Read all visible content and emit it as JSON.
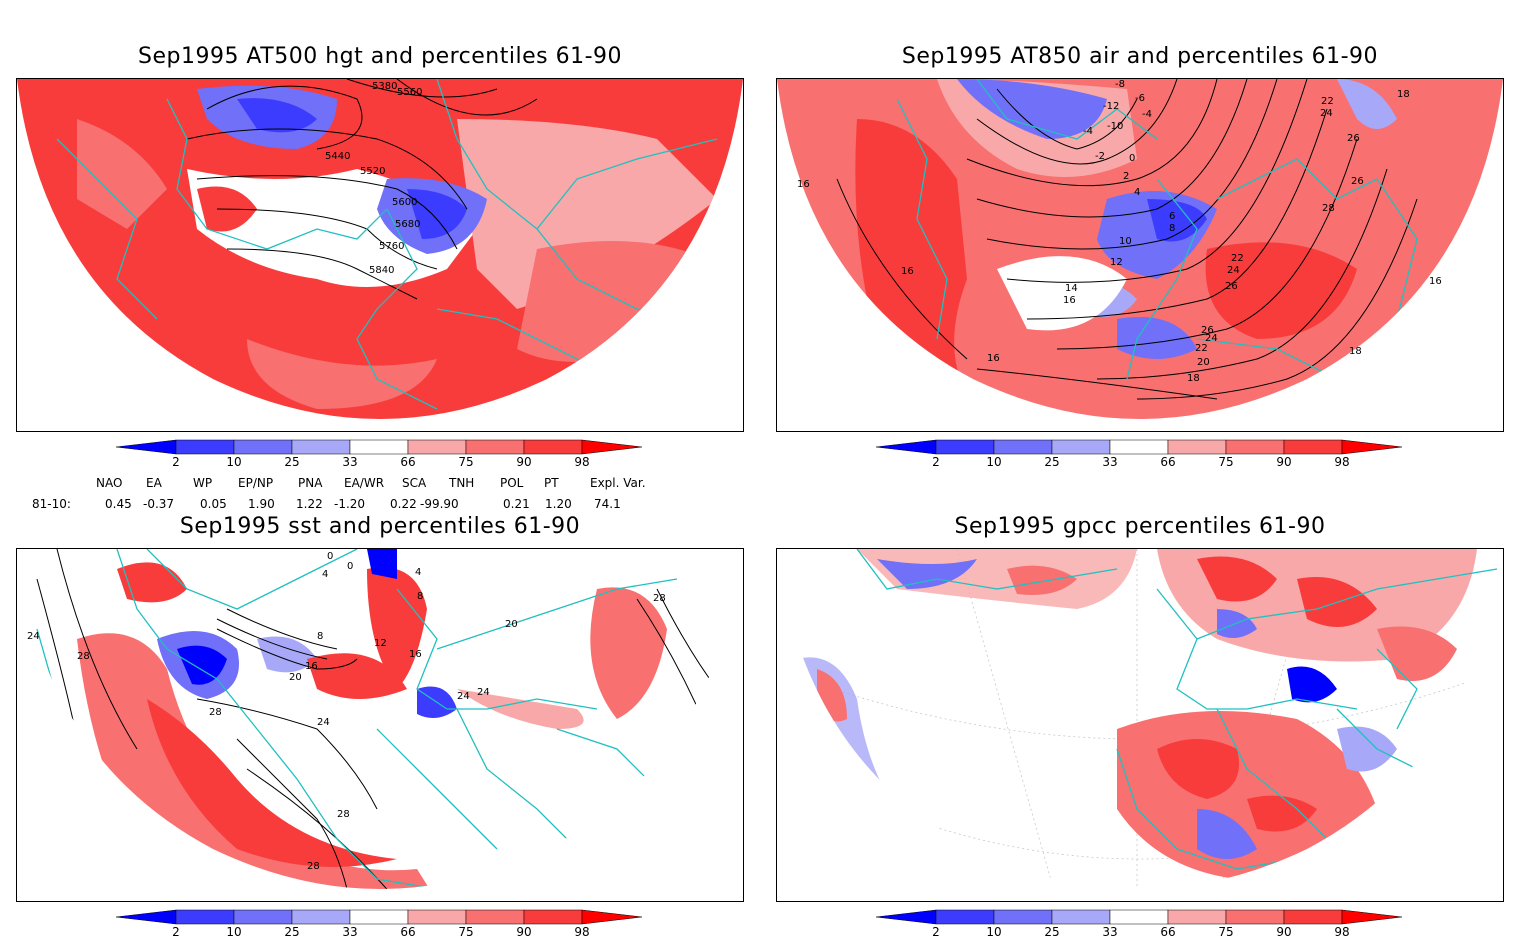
{
  "panels": [
    {
      "id": "p1",
      "title": "Sep1995 AT500 hgt and percentiles 61-90",
      "contour_labels": [
        "5380",
        "5560",
        "5440",
        "5520",
        "5600",
        "5680",
        "5760",
        "5840"
      ]
    },
    {
      "id": "p2",
      "title": "Sep1995 AT850 air and percentiles 61-90",
      "contour_labels": [
        "-8",
        "-6",
        "-12",
        "-4",
        "-10",
        "-4",
        "-2",
        "0",
        "2",
        "4",
        "6",
        "8",
        "10",
        "12",
        "14",
        "16",
        "16",
        "16",
        "18",
        "18",
        "16",
        "20",
        "22",
        "22",
        "24",
        "24",
        "26",
        "26",
        "26",
        "28",
        "22",
        "24",
        "26",
        "18",
        "16"
      ]
    },
    {
      "id": "p3",
      "title": "Sep1995 sst and percentiles 61-90",
      "contour_labels": [
        "0",
        "0",
        "4",
        "4",
        "8",
        "8",
        "12",
        "16",
        "16",
        "20",
        "24",
        "24",
        "24",
        "28",
        "28",
        "28",
        "28",
        "28",
        "20",
        "24"
      ]
    },
    {
      "id": "p4",
      "title": "Sep1995 gpcc percentiles 61-90",
      "contour_labels": []
    }
  ],
  "colorbar": {
    "labels": [
      "2",
      "10",
      "25",
      "33",
      "66",
      "75",
      "90",
      "98"
    ],
    "colors": {
      "b1": "#0000ff",
      "b2": "#3c3cff",
      "b3": "#7070f8",
      "b4": "#a8a8f8",
      "r1": "#f8a8a8",
      "r2": "#f87070",
      "r3": "#f83c3c",
      "r4": "#ff0000",
      "coast": "#20c0c0"
    }
  },
  "indices": {
    "headers": [
      "NAO",
      "EA",
      "WP",
      "EP/NP",
      "PNA",
      "EA/WR",
      "SCA",
      "TNH",
      "POL",
      "PT",
      "Expl. Var."
    ],
    "row_label": "81-10:",
    "values": [
      "0.45",
      "-0.37",
      "0.05",
      "1.90",
      "1.22",
      "-1.20",
      "0.22",
      "-99.90",
      "0.21",
      "1.20",
      "74.1"
    ]
  }
}
